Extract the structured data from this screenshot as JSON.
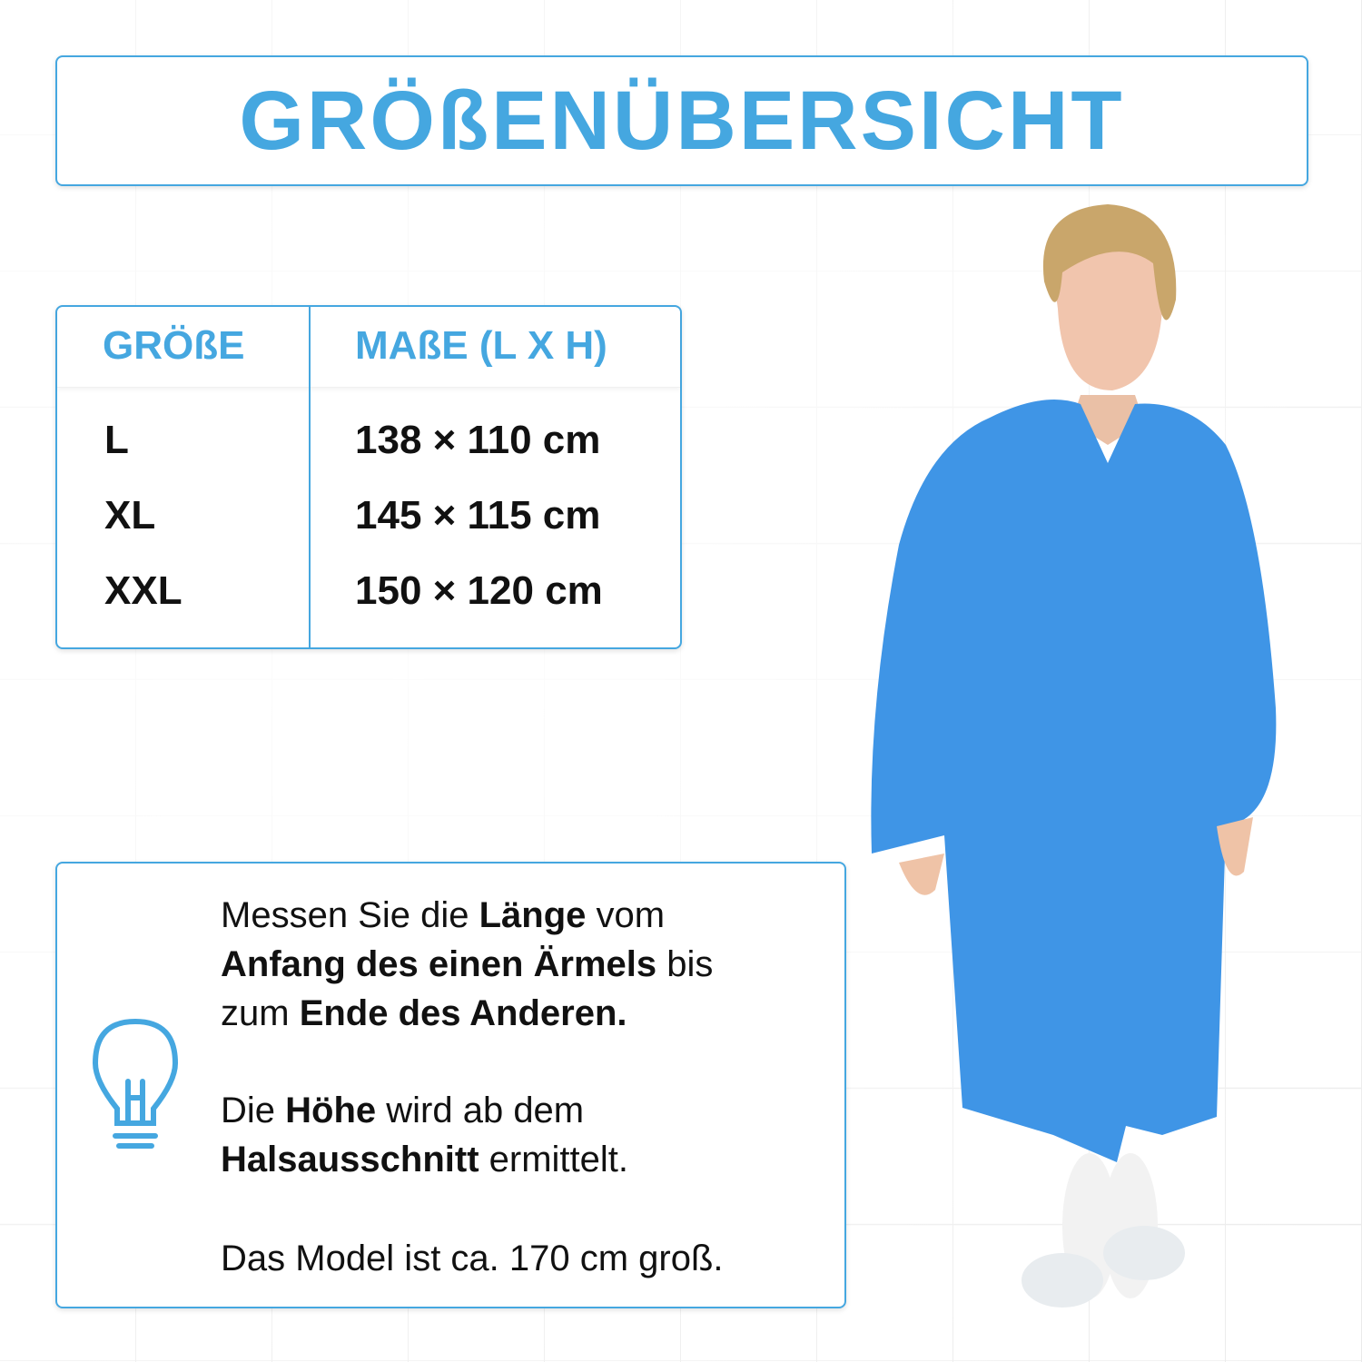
{
  "title": "GRÖßENÜBERSICHT",
  "table": {
    "headers": [
      "GRÖßE",
      "MAßE (L X H)"
    ],
    "rows": [
      {
        "size": "L",
        "dims": "138 × 110 cm"
      },
      {
        "size": "XL",
        "dims": "145 × 115 cm"
      },
      {
        "size": "XXL",
        "dims": "150 × 120 cm"
      }
    ]
  },
  "info": {
    "icon": "lightbulb-icon",
    "p1": [
      "Messen Sie die ",
      "Länge",
      " vom ",
      "Anfang des einen Ärmels",
      " bis ",
      "zum ",
      "Ende des Anderen."
    ],
    "p2": [
      "Die ",
      "Höhe",
      " wird ab dem ",
      "Halsausschnitt",
      " ermittelt."
    ],
    "p3": "Das Model ist ca. 170 cm groß."
  },
  "colors": {
    "accent": "#45a7e0",
    "gown": "#3f95e6",
    "text": "#111111"
  }
}
